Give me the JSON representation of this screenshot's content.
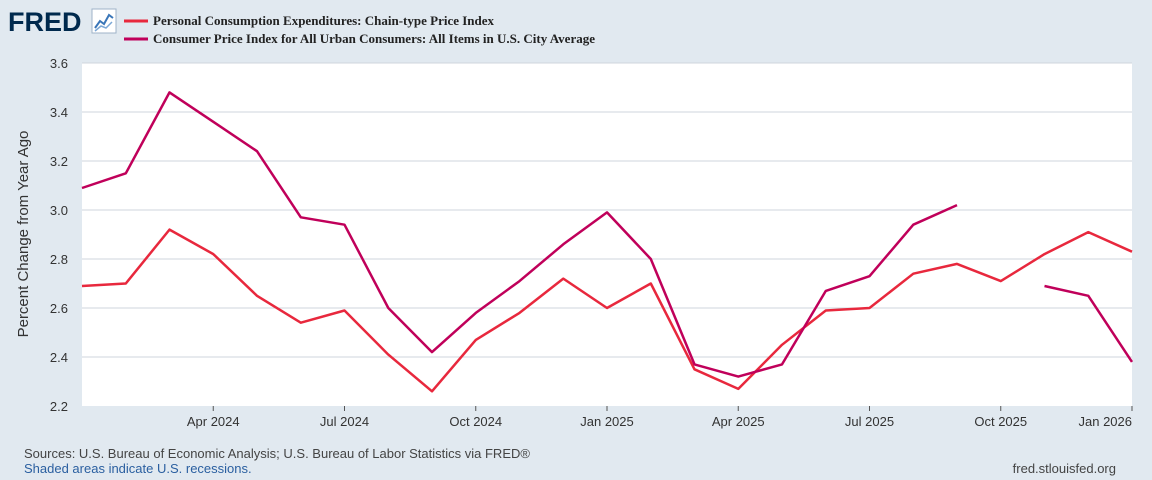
{
  "header": {
    "logo_text": "FRED",
    "logo_icon": "line-chart-icon"
  },
  "colors": {
    "background": "#e1e9f0",
    "plot_area": "#ffffff",
    "grid": "#cfd5dc",
    "pce": "#e8283d",
    "cpi": "#c0005a",
    "logo": "#00294d"
  },
  "footer": {
    "sources": "Sources: U.S. Bureau of Economic Analysis; U.S. Bureau of Labor Statistics via FRED®",
    "shading_note": "Shaded areas indicate U.S. recessions.",
    "site": "fred.stlouisfed.org"
  },
  "chart_data": {
    "type": "line",
    "ylabel": "Percent Change from Year Ago",
    "ylim": [
      2.2,
      3.6
    ],
    "yticks": [
      2.2,
      2.4,
      2.6,
      2.8,
      3.0,
      3.2,
      3.4,
      3.6
    ],
    "xlim": [
      "2024-01",
      "2026-01"
    ],
    "xticks": [
      {
        "date": "2024-04",
        "label": "Apr 2024"
      },
      {
        "date": "2024-07",
        "label": "Jul 2024"
      },
      {
        "date": "2024-10",
        "label": "Oct 2024"
      },
      {
        "date": "2025-01",
        "label": "Jan 2025"
      },
      {
        "date": "2025-04",
        "label": "Apr 2025"
      },
      {
        "date": "2025-07",
        "label": "Jul 2025"
      },
      {
        "date": "2025-10",
        "label": "Oct 2025"
      },
      {
        "date": "2026-01",
        "label": "Jan 2026"
      }
    ],
    "legend_position": "top-left",
    "grid": true,
    "series": [
      {
        "name": "Personal Consumption Expenditures: Chain-type Price Index",
        "color": "#e8283d",
        "points": [
          [
            "2024-01",
            2.69
          ],
          [
            "2024-02",
            2.7
          ],
          [
            "2024-03",
            2.92
          ],
          [
            "2024-04",
            2.82
          ],
          [
            "2024-05",
            2.65
          ],
          [
            "2024-06",
            2.54
          ],
          [
            "2024-07",
            2.59
          ],
          [
            "2024-08",
            2.41
          ],
          [
            "2024-09",
            2.26
          ],
          [
            "2024-10",
            2.47
          ],
          [
            "2024-11",
            2.58
          ],
          [
            "2024-12",
            2.72
          ],
          [
            "2025-01",
            2.6
          ],
          [
            "2025-02",
            2.7
          ],
          [
            "2025-03",
            2.35
          ],
          [
            "2025-04",
            2.27
          ],
          [
            "2025-05",
            2.45
          ],
          [
            "2025-06",
            2.59
          ],
          [
            "2025-07",
            2.6
          ],
          [
            "2025-08",
            2.74
          ],
          [
            "2025-09",
            2.78
          ],
          [
            "2025-10",
            2.71
          ],
          [
            "2025-11",
            2.82
          ],
          [
            "2025-12",
            2.91
          ],
          [
            "2026-01",
            2.83
          ]
        ]
      },
      {
        "name": "Consumer Price Index for All Urban Consumers: All Items in U.S. City Average",
        "color": "#c0005a",
        "points": [
          [
            "2024-01",
            3.09
          ],
          [
            "2024-02",
            3.15
          ],
          [
            "2024-03",
            3.48
          ],
          [
            "2024-04",
            3.36
          ],
          [
            "2024-05",
            3.24
          ],
          [
            "2024-06",
            2.97
          ],
          [
            "2024-07",
            2.94
          ],
          [
            "2024-08",
            2.6
          ],
          [
            "2024-09",
            2.42
          ],
          [
            "2024-10",
            2.58
          ],
          [
            "2024-11",
            2.71
          ],
          [
            "2024-12",
            2.86
          ],
          [
            "2025-01",
            2.99
          ],
          [
            "2025-02",
            2.8
          ],
          [
            "2025-03",
            2.37
          ],
          [
            "2025-04",
            2.32
          ],
          [
            "2025-05",
            2.37
          ],
          [
            "2025-06",
            2.67
          ],
          [
            "2025-07",
            2.73
          ],
          [
            "2025-08",
            2.94
          ],
          [
            "2025-09",
            3.02
          ],
          [
            "2025-10",
            null
          ],
          [
            "2025-11",
            2.69
          ],
          [
            "2025-12",
            2.65
          ],
          [
            "2026-01",
            2.38
          ]
        ]
      }
    ]
  }
}
